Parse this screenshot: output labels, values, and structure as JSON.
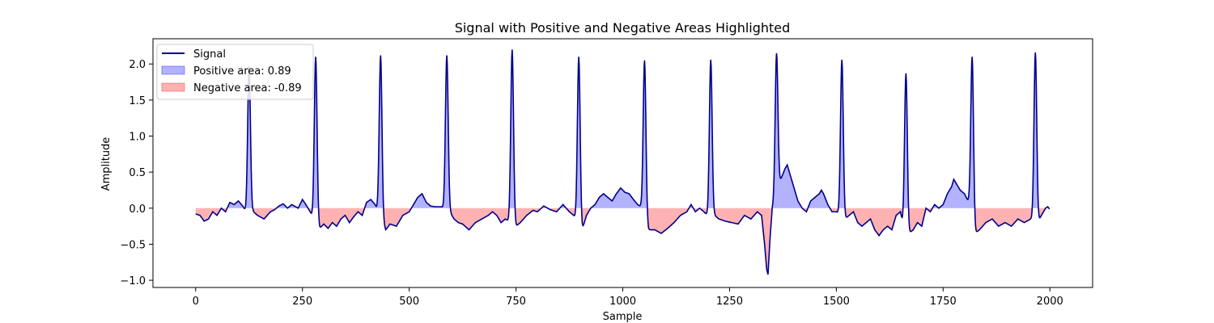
{
  "chart_data": {
    "type": "area",
    "title": "Signal with Positive and Negative Areas Highlighted",
    "xlabel": "Sample",
    "ylabel": "Amplitude",
    "xlim": [
      -100,
      2100
    ],
    "ylim": [
      -1.1,
      2.35
    ],
    "xticks": [
      0,
      250,
      500,
      750,
      1000,
      1250,
      1500,
      1750,
      2000
    ],
    "yticks": [
      -1.0,
      -0.5,
      0.0,
      0.5,
      1.0,
      1.5,
      2.0
    ],
    "grid": false,
    "legend_location": "upper-left",
    "series": [
      {
        "name": "Signal",
        "kind": "line",
        "color": "#00008b"
      },
      {
        "name": "Positive area: 0.89",
        "kind": "fill",
        "color": "#0000ff"
      },
      {
        "name": "Negative area: -0.89",
        "kind": "fill",
        "color": "#ff0000"
      }
    ],
    "signal": {
      "sample_count": 2000,
      "baseline_points": [
        [
          0,
          -0.08
        ],
        [
          10,
          -0.1
        ],
        [
          20,
          -0.18
        ],
        [
          30,
          -0.15
        ],
        [
          40,
          -0.05
        ],
        [
          50,
          -0.1
        ],
        [
          60,
          0.0
        ],
        [
          70,
          -0.05
        ],
        [
          80,
          0.08
        ],
        [
          90,
          0.05
        ],
        [
          100,
          0.1
        ],
        [
          110,
          0.03
        ],
        [
          118,
          -0.05
        ],
        [
          135,
          -0.05
        ],
        [
          145,
          -0.1
        ],
        [
          160,
          -0.15
        ],
        [
          175,
          -0.05
        ],
        [
          185,
          -0.02
        ],
        [
          195,
          0.03
        ],
        [
          205,
          0.06
        ],
        [
          215,
          0.0
        ],
        [
          225,
          0.05
        ],
        [
          240,
          0.0
        ],
        [
          250,
          0.12
        ],
        [
          258,
          0.05
        ],
        [
          268,
          -0.05
        ],
        [
          272,
          -0.1
        ],
        [
          290,
          -0.28
        ],
        [
          300,
          -0.22
        ],
        [
          310,
          -0.28
        ],
        [
          320,
          -0.2
        ],
        [
          330,
          -0.25
        ],
        [
          340,
          -0.15
        ],
        [
          350,
          -0.1
        ],
        [
          360,
          -0.2
        ],
        [
          370,
          -0.12
        ],
        [
          380,
          -0.05
        ],
        [
          390,
          -0.1
        ],
        [
          400,
          0.08
        ],
        [
          410,
          0.12
        ],
        [
          420,
          0.05
        ],
        [
          445,
          -0.3
        ],
        [
          455,
          -0.22
        ],
        [
          470,
          -0.25
        ],
        [
          485,
          -0.1
        ],
        [
          500,
          -0.05
        ],
        [
          510,
          0.05
        ],
        [
          520,
          0.15
        ],
        [
          530,
          0.2
        ],
        [
          540,
          0.08
        ],
        [
          550,
          0.03
        ],
        [
          560,
          0.02
        ],
        [
          575,
          0.02
        ],
        [
          595,
          -0.05
        ],
        [
          605,
          -0.15
        ],
        [
          615,
          -0.2
        ],
        [
          625,
          -0.22
        ],
        [
          640,
          -0.3
        ],
        [
          655,
          -0.2
        ],
        [
          670,
          -0.15
        ],
        [
          685,
          -0.1
        ],
        [
          695,
          -0.05
        ],
        [
          705,
          -0.1
        ],
        [
          715,
          -0.2
        ],
        [
          725,
          -0.15
        ],
        [
          750,
          -0.25
        ],
        [
          760,
          -0.2
        ],
        [
          775,
          -0.1
        ],
        [
          790,
          -0.03
        ],
        [
          800,
          -0.05
        ],
        [
          815,
          0.03
        ],
        [
          830,
          -0.02
        ],
        [
          845,
          -0.05
        ],
        [
          860,
          0.05
        ],
        [
          875,
          -0.05
        ],
        [
          885,
          -0.1
        ],
        [
          905,
          -0.3
        ],
        [
          915,
          -0.1
        ],
        [
          925,
          0.0
        ],
        [
          935,
          0.05
        ],
        [
          945,
          0.15
        ],
        [
          955,
          0.2
        ],
        [
          965,
          0.15
        ],
        [
          975,
          0.1
        ],
        [
          985,
          0.2
        ],
        [
          995,
          0.28
        ],
        [
          1005,
          0.22
        ],
        [
          1015,
          0.2
        ],
        [
          1025,
          0.12
        ],
        [
          1035,
          0.05
        ],
        [
          1042,
          0.02
        ],
        [
          1060,
          -0.3
        ],
        [
          1075,
          -0.3
        ],
        [
          1090,
          -0.35
        ],
        [
          1105,
          -0.28
        ],
        [
          1120,
          -0.2
        ],
        [
          1135,
          -0.1
        ],
        [
          1150,
          -0.05
        ],
        [
          1160,
          0.05
        ],
        [
          1170,
          -0.05
        ],
        [
          1180,
          0.0
        ],
        [
          1190,
          -0.05
        ],
        [
          1198,
          -0.1
        ],
        [
          1215,
          -0.1
        ],
        [
          1225,
          -0.15
        ],
        [
          1240,
          -0.18
        ],
        [
          1255,
          -0.2
        ],
        [
          1270,
          -0.22
        ],
        [
          1285,
          -0.1
        ],
        [
          1300,
          -0.15
        ],
        [
          1315,
          -0.05
        ],
        [
          1325,
          -0.1
        ],
        [
          1332,
          -0.5
        ],
        [
          1337,
          -0.85
        ],
        [
          1340,
          -0.92
        ],
        [
          1345,
          -0.4
        ],
        [
          1350,
          0.0
        ],
        [
          1370,
          0.4
        ],
        [
          1380,
          0.55
        ],
        [
          1385,
          0.6
        ],
        [
          1390,
          0.5
        ],
        [
          1395,
          0.4
        ],
        [
          1400,
          0.3
        ],
        [
          1410,
          0.1
        ],
        [
          1420,
          0.0
        ],
        [
          1430,
          -0.05
        ],
        [
          1440,
          0.1
        ],
        [
          1450,
          0.15
        ],
        [
          1460,
          0.2
        ],
        [
          1465,
          0.25
        ],
        [
          1470,
          0.2
        ],
        [
          1480,
          0.05
        ],
        [
          1490,
          -0.05
        ],
        [
          1500,
          -0.05
        ],
        [
          1520,
          -0.15
        ],
        [
          1530,
          -0.1
        ],
        [
          1540,
          -0.05
        ],
        [
          1550,
          -0.2
        ],
        [
          1560,
          -0.25
        ],
        [
          1570,
          -0.2
        ],
        [
          1580,
          -0.15
        ],
        [
          1590,
          -0.3
        ],
        [
          1600,
          -0.38
        ],
        [
          1610,
          -0.3
        ],
        [
          1620,
          -0.25
        ],
        [
          1630,
          -0.3
        ],
        [
          1640,
          -0.1
        ],
        [
          1650,
          -0.05
        ],
        [
          1655,
          -0.2
        ],
        [
          1670,
          -0.35
        ],
        [
          1680,
          -0.3
        ],
        [
          1690,
          -0.2
        ],
        [
          1700,
          -0.25
        ],
        [
          1710,
          0.0
        ],
        [
          1720,
          -0.05
        ],
        [
          1730,
          0.05
        ],
        [
          1740,
          0.0
        ],
        [
          1750,
          0.05
        ],
        [
          1760,
          0.2
        ],
        [
          1770,
          0.3
        ],
        [
          1775,
          0.4
        ],
        [
          1780,
          0.35
        ],
        [
          1790,
          0.25
        ],
        [
          1800,
          0.2
        ],
        [
          1810,
          0.08
        ],
        [
          1825,
          -0.35
        ],
        [
          1835,
          -0.3
        ],
        [
          1850,
          -0.2
        ],
        [
          1865,
          -0.15
        ],
        [
          1880,
          -0.25
        ],
        [
          1895,
          -0.2
        ],
        [
          1910,
          -0.25
        ],
        [
          1925,
          -0.15
        ],
        [
          1940,
          -0.2
        ],
        [
          1955,
          -0.15
        ],
        [
          1972,
          -0.2
        ],
        [
          1980,
          -0.1
        ],
        [
          1990,
          0.0
        ],
        [
          1995,
          0.02
        ],
        [
          2000,
          -0.02
        ]
      ],
      "r_peaks": [
        {
          "x": 125,
          "y": 1.97
        },
        {
          "x": 281,
          "y": 2.1
        },
        {
          "x": 433,
          "y": 2.12
        },
        {
          "x": 588,
          "y": 2.12
        },
        {
          "x": 741,
          "y": 2.2
        },
        {
          "x": 897,
          "y": 2.1
        },
        {
          "x": 1051,
          "y": 2.05
        },
        {
          "x": 1206,
          "y": 2.06
        },
        {
          "x": 1360,
          "y": 2.15
        },
        {
          "x": 1513,
          "y": 2.06
        },
        {
          "x": 1663,
          "y": 1.87
        },
        {
          "x": 1818,
          "y": 2.1
        },
        {
          "x": 1966,
          "y": 2.16
        }
      ]
    }
  }
}
